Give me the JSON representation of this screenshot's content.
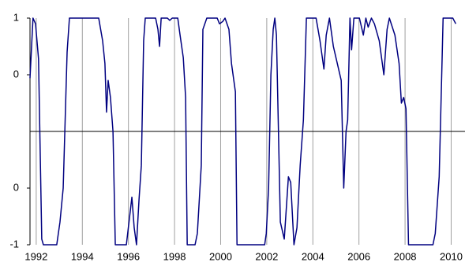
{
  "chart_data": {
    "type": "line",
    "x": [
      1991.73,
      1991.86,
      1991.97,
      1992.1,
      1992.24,
      1992.31,
      1992.89,
      1993.03,
      1993.17,
      1993.34,
      1993.44,
      1994.71,
      1994.88,
      1994.98,
      1995.05,
      1995.12,
      1995.22,
      1995.33,
      1995.43,
      1995.91,
      1996.15,
      1996.25,
      1996.35,
      1996.46,
      1996.56,
      1996.66,
      1996.73,
      1997.18,
      1997.28,
      1997.35,
      1997.42,
      1997.69,
      1997.79,
      1997.9,
      1998.14,
      1998.24,
      1998.38,
      1998.48,
      1998.55,
      1998.89,
      1998.99,
      1999.16,
      1999.23,
      1999.4,
      1999.85,
      1999.95,
      2000.09,
      2000.19,
      2000.36,
      2000.47,
      2000.64,
      2000.71,
      2001.91,
      2001.98,
      2002.08,
      2002.18,
      2002.28,
      2002.35,
      2002.42,
      2002.59,
      2002.76,
      2002.94,
      2003.04,
      2003.18,
      2003.31,
      2003.45,
      2003.59,
      2003.72,
      2004.14,
      2004.31,
      2004.48,
      2004.58,
      2004.72,
      2004.89,
      2005.06,
      2005.23,
      2005.34,
      2005.44,
      2005.51,
      2005.61,
      2005.68,
      2005.78,
      2006.02,
      2006.19,
      2006.3,
      2006.4,
      2006.54,
      2006.67,
      2006.88,
      2007.08,
      2007.22,
      2007.32,
      2007.56,
      2007.74,
      2007.84,
      2007.94,
      2008.04,
      2008.15,
      2009.21,
      2009.31,
      2009.48,
      2009.59,
      2009.65,
      2010.07,
      2010.2
    ],
    "series": [
      {
        "color": "#000080",
        "values": [
          0.47,
          1,
          0.95,
          0.64,
          -0.95,
          -1,
          -1,
          -0.8,
          -0.5,
          0.7,
          1,
          1,
          0.8,
          0.6,
          0.17,
          0.45,
          0.3,
          0.0,
          -1,
          -1,
          -0.58,
          -0.85,
          -1,
          -0.6,
          -0.3,
          0.8,
          1,
          1,
          0.9,
          0.75,
          1,
          1,
          0.98,
          1,
          1,
          0.85,
          0.65,
          0.3,
          -1,
          -1,
          -0.9,
          -0.3,
          0.9,
          1,
          1,
          0.95,
          0.97,
          1,
          0.9,
          0.6,
          0.35,
          -1,
          -1,
          -0.9,
          -0.5,
          0.5,
          0.9,
          1,
          0.85,
          -0.8,
          -0.95,
          -0.4,
          -0.45,
          -1,
          -0.85,
          -0.3,
          0.1,
          1,
          1,
          0.8,
          0.55,
          0.85,
          1,
          0.75,
          0.6,
          0.45,
          -0.5,
          0.0,
          0.1,
          1,
          0.72,
          1,
          1,
          0.85,
          1,
          0.92,
          1,
          0.95,
          0.8,
          0.5,
          0.9,
          1,
          0.85,
          0.6,
          0.25,
          0.3,
          0.2,
          -1,
          -1,
          -0.9,
          -0.4,
          0.5,
          1,
          1,
          0.95
        ]
      }
    ],
    "xlim": [
      1991.73,
      2010.6
    ],
    "xticks": [
      1992,
      1994,
      1996,
      1998,
      2000,
      2002,
      2004,
      2006,
      2008,
      2010
    ],
    "ylim": [
      -1,
      1
    ],
    "yticks": [
      1,
      {
        "value": 0.5,
        "label": "0"
      },
      {
        "value": -0.5,
        "label": "0"
      },
      -1
    ],
    "grid": true
  }
}
